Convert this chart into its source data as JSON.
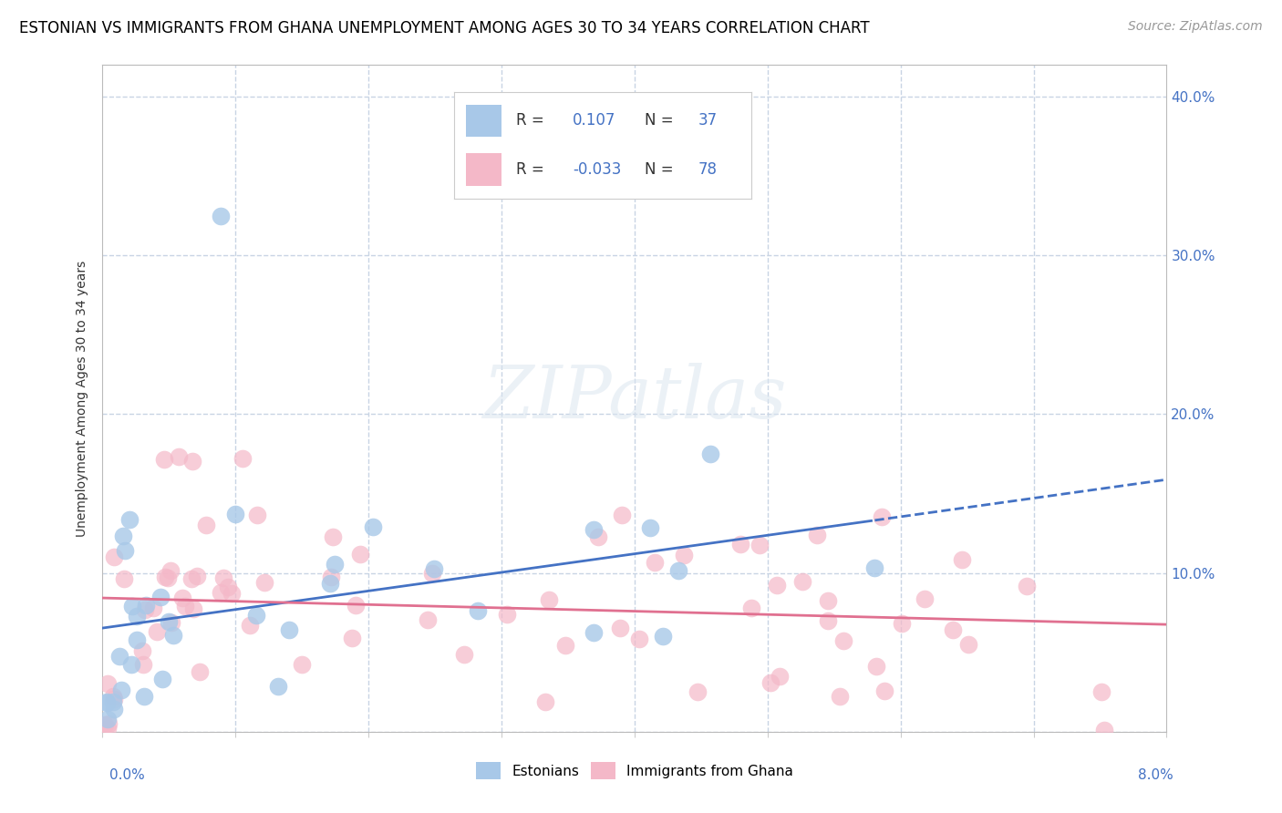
{
  "title": "ESTONIAN VS IMMIGRANTS FROM GHANA UNEMPLOYMENT AMONG AGES 30 TO 34 YEARS CORRELATION CHART",
  "source": "Source: ZipAtlas.com",
  "ylabel_label": "Unemployment Among Ages 30 to 34 years",
  "watermark": "ZIPatlas",
  "estonians": {
    "color": "#a8c8e8",
    "line_color": "#4472c4",
    "R": 0.107,
    "N": 37
  },
  "ghana": {
    "color": "#f4b8c8",
    "line_color": "#e07090",
    "R": -0.033,
    "N": 78
  },
  "xlim": [
    0.0,
    0.08
  ],
  "ylim": [
    0.0,
    0.42
  ],
  "yticks": [
    0.0,
    0.1,
    0.2,
    0.3,
    0.4
  ],
  "ytick_labels": [
    "",
    "10.0%",
    "20.0%",
    "30.0%",
    "40.0%"
  ],
  "background_color": "#ffffff",
  "grid_color": "#c8d4e4",
  "title_fontsize": 12,
  "axis_label_fontsize": 10,
  "tick_fontsize": 11,
  "source_fontsize": 10
}
